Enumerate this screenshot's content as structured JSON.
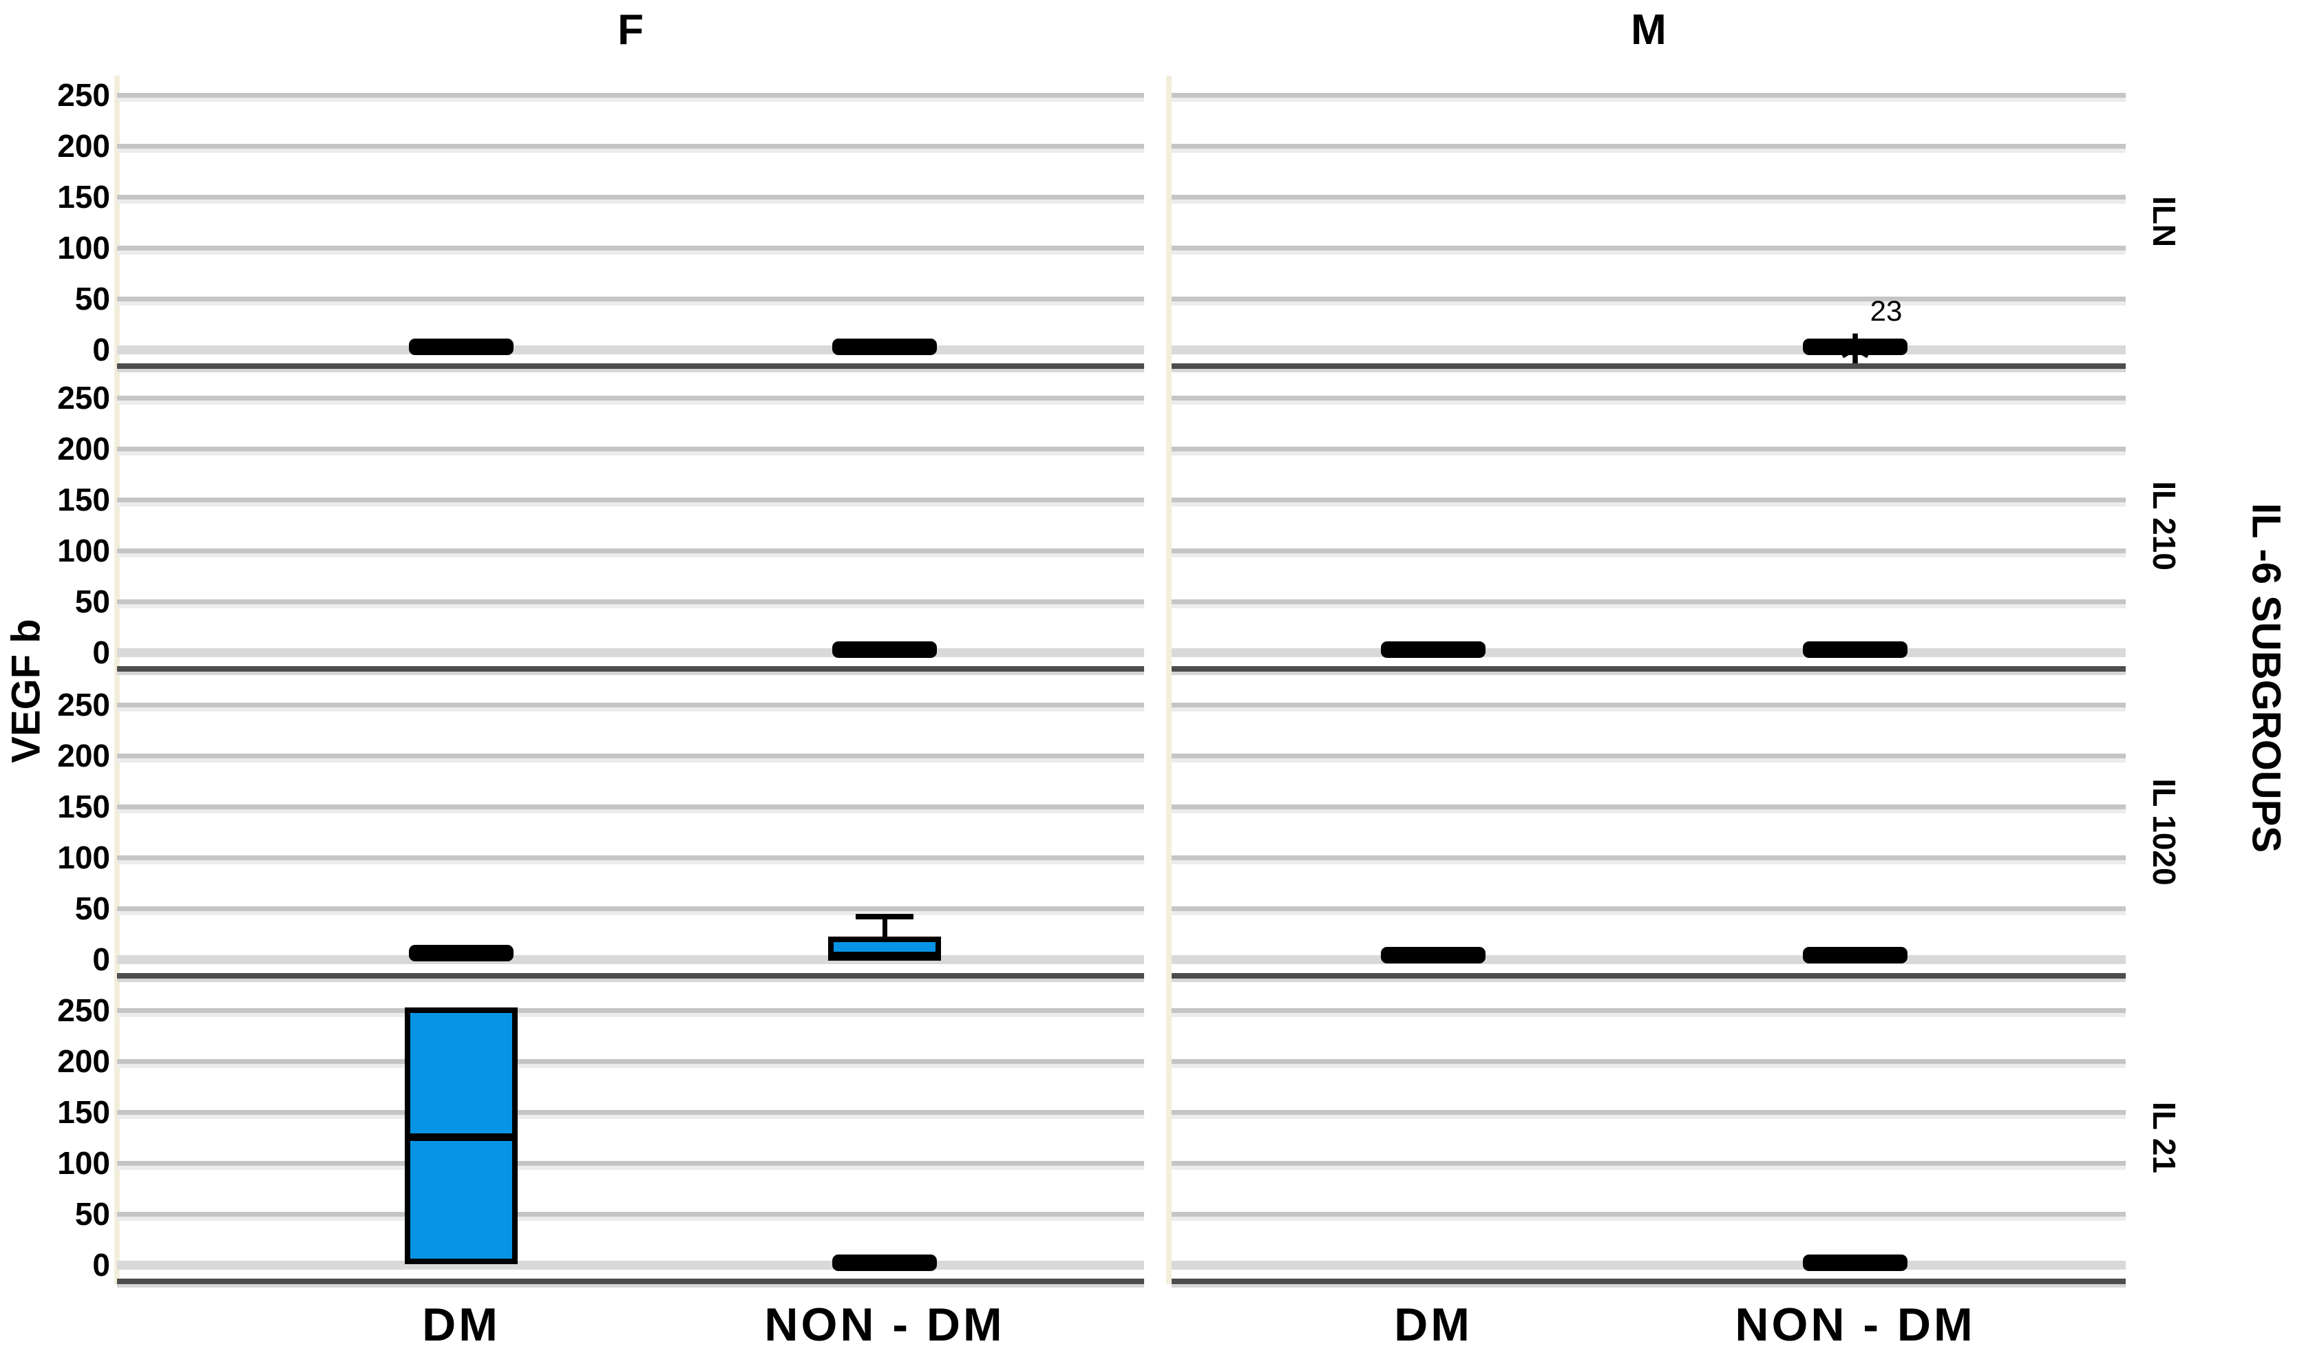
{
  "figure": {
    "y_axis_title": "VEGF b",
    "outer_row_title": "IL -6 SUBGROUPS",
    "column_titles": [
      "F",
      "M"
    ],
    "row_labels": [
      "ILN",
      "IL 210",
      "IL 1020",
      "IL 21"
    ],
    "x_categories": [
      "DM",
      "NON - DM"
    ]
  },
  "chart_data": {
    "type": "boxplot",
    "title": "",
    "xlabel": "",
    "ylabel": "VEGF b",
    "facet_columns": [
      "F",
      "M"
    ],
    "facet_rows": [
      "ILN",
      "IL 210",
      "IL 1020",
      "IL 21"
    ],
    "facet_row_dimension": "IL -6 SUBGROUPS",
    "x_categories": [
      "DM",
      "NON - DM"
    ],
    "y_ticks": [
      0,
      50,
      100,
      150,
      200,
      250
    ],
    "y_range": [
      0,
      250
    ],
    "grid": "horizontal",
    "colors": {
      "box_fill": "#0894e4",
      "box_line": "#000000",
      "gridline": "#c5c5c5",
      "axis_line": "#4d4d4d",
      "panel_edge": "#f3eedc"
    },
    "panels": [
      {
        "column": "F",
        "row": "ILN",
        "boxes": [
          {
            "category": "DM",
            "kind": "flat",
            "value": 3
          },
          {
            "category": "NON - DM",
            "kind": "flat",
            "value": 3
          }
        ]
      },
      {
        "column": "F",
        "row": "IL 210",
        "boxes": [
          {
            "category": "NON - DM",
            "kind": "flat",
            "value": 3
          }
        ]
      },
      {
        "column": "F",
        "row": "IL 1020",
        "boxes": [
          {
            "category": "DM",
            "kind": "flat",
            "value": 6
          },
          {
            "category": "NON - DM",
            "kind": "box",
            "q1": 2,
            "median": 3,
            "q3": 22,
            "whisker_high": 42
          }
        ]
      },
      {
        "column": "F",
        "row": "IL 21",
        "boxes": [
          {
            "category": "DM",
            "kind": "box",
            "q1": 1,
            "median": 126,
            "q3": 253
          },
          {
            "category": "NON - DM",
            "kind": "flat",
            "value": 2
          }
        ]
      },
      {
        "column": "M",
        "row": "ILN",
        "boxes": [
          {
            "category": "NON - DM",
            "kind": "flat",
            "value": 3,
            "outlier": {
              "marker": "*",
              "label": "23",
              "value": 3
            }
          }
        ]
      },
      {
        "column": "M",
        "row": "IL 210",
        "boxes": [
          {
            "category": "DM",
            "kind": "flat",
            "value": 3
          },
          {
            "category": "NON - DM",
            "kind": "flat",
            "value": 3
          }
        ]
      },
      {
        "column": "M",
        "row": "IL 1020",
        "boxes": [
          {
            "category": "DM",
            "kind": "flat",
            "value": 4
          },
          {
            "category": "NON - DM",
            "kind": "flat",
            "value": 4
          }
        ]
      },
      {
        "column": "M",
        "row": "IL 21",
        "boxes": [
          {
            "category": "NON - DM",
            "kind": "flat",
            "value": 2
          }
        ]
      }
    ]
  }
}
